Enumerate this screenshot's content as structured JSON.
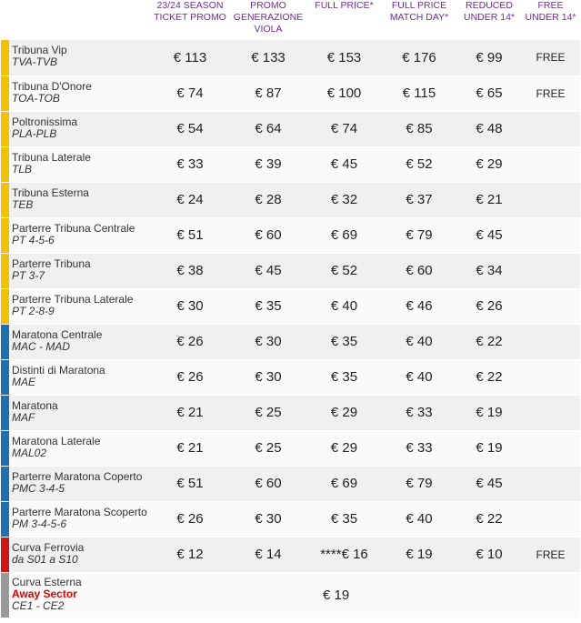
{
  "colors": {
    "tribuna": "#f2c200",
    "maratona": "#1e6fb5",
    "ferrovia": "#d01414",
    "esterna": "#9a9a9a",
    "header": "#6f2c91",
    "away": "#e00000"
  },
  "headers": [
    "",
    "23/24 SEASON\nTICKET PROMO",
    "PROMO\nGENERAZIONE\nVIOLA",
    "FULL PRICE*",
    "FULL PRICE\nMATCH DAY*",
    "REDUCED\nUNDER 14*",
    "FREE\nUNDER 14*"
  ],
  "rows": [
    {
      "name": "Tribuna Vip",
      "code": "TVA-TVB",
      "group": "tribuna",
      "prices": [
        "€ 113",
        "€ 133",
        "€ 153",
        "€ 176",
        "€ 99",
        "FREE"
      ]
    },
    {
      "name": "Tribuna D'Onore",
      "code": "TOA-TOB",
      "group": "tribuna",
      "prices": [
        "€ 74",
        "€ 87",
        "€ 100",
        "€ 115",
        "€ 65",
        "FREE"
      ]
    },
    {
      "name": "Poltronissima",
      "code": "PLA-PLB",
      "group": "tribuna",
      "prices": [
        "€ 54",
        "€ 64",
        "€ 74",
        "€ 85",
        "€ 48",
        ""
      ]
    },
    {
      "name": "Tribuna Laterale",
      "code": "TLB",
      "group": "tribuna",
      "prices": [
        "€ 33",
        "€ 39",
        "€ 45",
        "€ 52",
        "€ 29",
        ""
      ]
    },
    {
      "name": "Tribuna Esterna",
      "code": "TEB",
      "group": "tribuna",
      "prices": [
        "€ 24",
        "€ 28",
        "€ 32",
        "€ 37",
        "€ 21",
        ""
      ]
    },
    {
      "name": "Parterre Tribuna Centrale",
      "code": "PT 4-5-6",
      "group": "tribuna",
      "prices": [
        "€ 51",
        "€ 60",
        "€ 69",
        "€ 79",
        "€ 45",
        ""
      ]
    },
    {
      "name": "Parterre Tribuna",
      "code": "PT 3-7",
      "group": "tribuna",
      "prices": [
        "€ 38",
        "€ 45",
        "€ 52",
        "€ 60",
        "€ 34",
        ""
      ]
    },
    {
      "name": "Parterre Tribuna Laterale",
      "code": "PT 2-8-9",
      "group": "tribuna",
      "prices": [
        "€ 30",
        "€ 35",
        "€ 40",
        "€ 46",
        "€ 26",
        ""
      ]
    },
    {
      "name": "Maratona Centrale",
      "code": "MAC - MAD",
      "group": "maratona",
      "prices": [
        "€ 26",
        "€ 30",
        "€ 35",
        "€ 40",
        "€ 22",
        ""
      ]
    },
    {
      "name": "Distinti di Maratona",
      "code": "MAE",
      "group": "maratona",
      "prices": [
        "€ 26",
        "€ 30",
        "€ 35",
        "€ 40",
        "€ 22",
        ""
      ]
    },
    {
      "name": "Maratona",
      "code": "MAF",
      "group": "maratona",
      "prices": [
        "€ 21",
        "€ 25",
        "€ 29",
        "€ 33",
        "€ 19",
        ""
      ]
    },
    {
      "name": "Maratona Laterale",
      "code": "MAL02",
      "group": "maratona",
      "prices": [
        "€ 21",
        "€ 25",
        "€ 29",
        "€ 33",
        "€ 19",
        ""
      ]
    },
    {
      "name": "Parterre Maratona Coperto",
      "code": "PMC 3-4-5",
      "group": "maratona",
      "prices": [
        "€ 51",
        "€ 60",
        "€ 69",
        "€ 79",
        "€ 45",
        ""
      ]
    },
    {
      "name": "Parterre Maratona Scoperto",
      "code": "PM 3-4-5-6",
      "group": "maratona",
      "prices": [
        "€ 26",
        "€ 30",
        "€ 35",
        "€ 40",
        "€ 22",
        ""
      ]
    },
    {
      "name": "Curva Ferrovia",
      "code": "da S01 a S10",
      "group": "ferrovia",
      "prices": [
        "€ 12",
        "€ 14",
        "****€ 16",
        "€ 19",
        "€ 10",
        "FREE"
      ]
    }
  ],
  "last_row": {
    "name": "Curva Esterna",
    "away": "Away Sector",
    "code": "CE1 - CE2",
    "group": "esterna",
    "price": "€ 19"
  }
}
